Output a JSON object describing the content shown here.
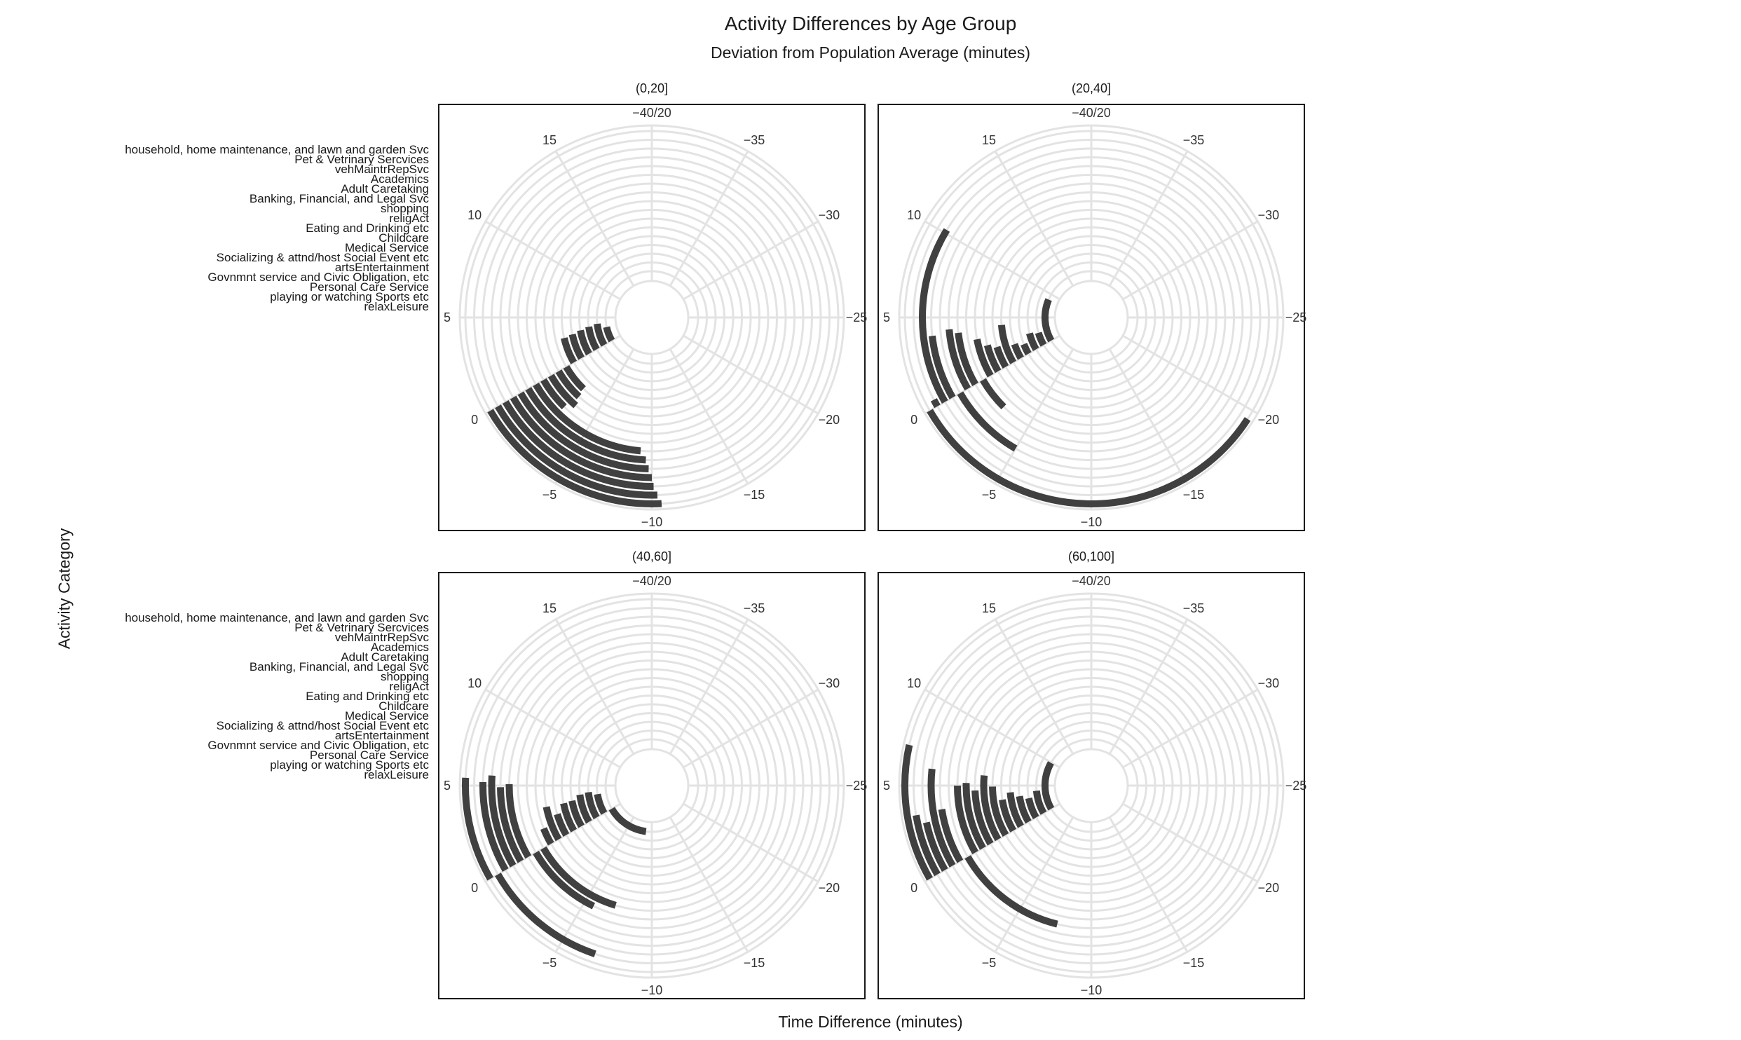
{
  "title": "Activity Differences by Age Group",
  "subtitle": "Deviation from Population Average (minutes)",
  "xlabel": "Time Difference (minutes)",
  "ylabel": "Activity Category",
  "colors": {
    "bar": "#404040",
    "grid": "#e3e3e3",
    "frame": "#1a1a1a",
    "text": "#333333"
  },
  "chart_data": {
    "type": "bar",
    "coordinate_system": "polar (theta = time difference, radius = activity category)",
    "theta_range": [
      -40,
      20
    ],
    "theta_ticks": [
      "-40/20",
      "-35",
      "-30",
      "-25",
      "-20",
      "-15",
      "-10",
      "-5",
      "0",
      "5",
      "10",
      "15"
    ],
    "categories_outer_to_inner": [
      "household, home maintenance, and lawn and garden Svc",
      "Pet & Vetrinary Sercvices",
      "vehMaintrRepSvc",
      "Academics",
      "Adult Caretaking",
      "Banking, Financial, and Legal Svc",
      "shopping",
      "religAct",
      "Eating and Drinking etc",
      "Childcare",
      "Medical Service",
      "Socializing & attnd/host Social Event etc",
      "artsEntertainment",
      "Govnmnt service and Civic Obligation, etc",
      "Personal Care Service",
      "playing or watching Sports etc",
      "relaxLeisure"
    ],
    "panels": [
      {
        "label": "(0,20]",
        "values": [
          -10.5,
          -10.3,
          -10.1,
          -10.0,
          -9.8,
          -9.6,
          -9.2,
          -2.6,
          -3.2,
          -2.9,
          -2.7,
          2.8,
          3.0,
          3.3,
          3.6,
          3.9,
          3.0
        ]
      },
      {
        "label": "(20,40]",
        "values": [
          -19.5,
          0.4,
          10.2,
          3.9,
          -5.0,
          4.2,
          3.9,
          -2.6,
          3.2,
          2.5,
          2.1,
          4.2,
          1.8,
          1.4,
          2.6,
          2.3,
          8.8
        ]
      },
      {
        "label": "(40,60]",
        "values": [
          5.4,
          -6.9,
          5.2,
          5.6,
          4.9,
          5.1,
          -5.7,
          -7.2,
          1.4,
          3.1,
          2.2,
          3.1,
          3.2,
          3.8,
          4.0,
          3.5,
          -8.8
        ]
      },
      {
        "label": "(60,100]",
        "values": [
          7.1,
          3.4,
          2.9,
          6.0,
          3.5,
          -7.7,
          5.0,
          5.2,
          4.6,
          5.9,
          4.9,
          3.5,
          4.2,
          3.6,
          3.1,
          4.1,
          9.9
        ]
      }
    ]
  }
}
